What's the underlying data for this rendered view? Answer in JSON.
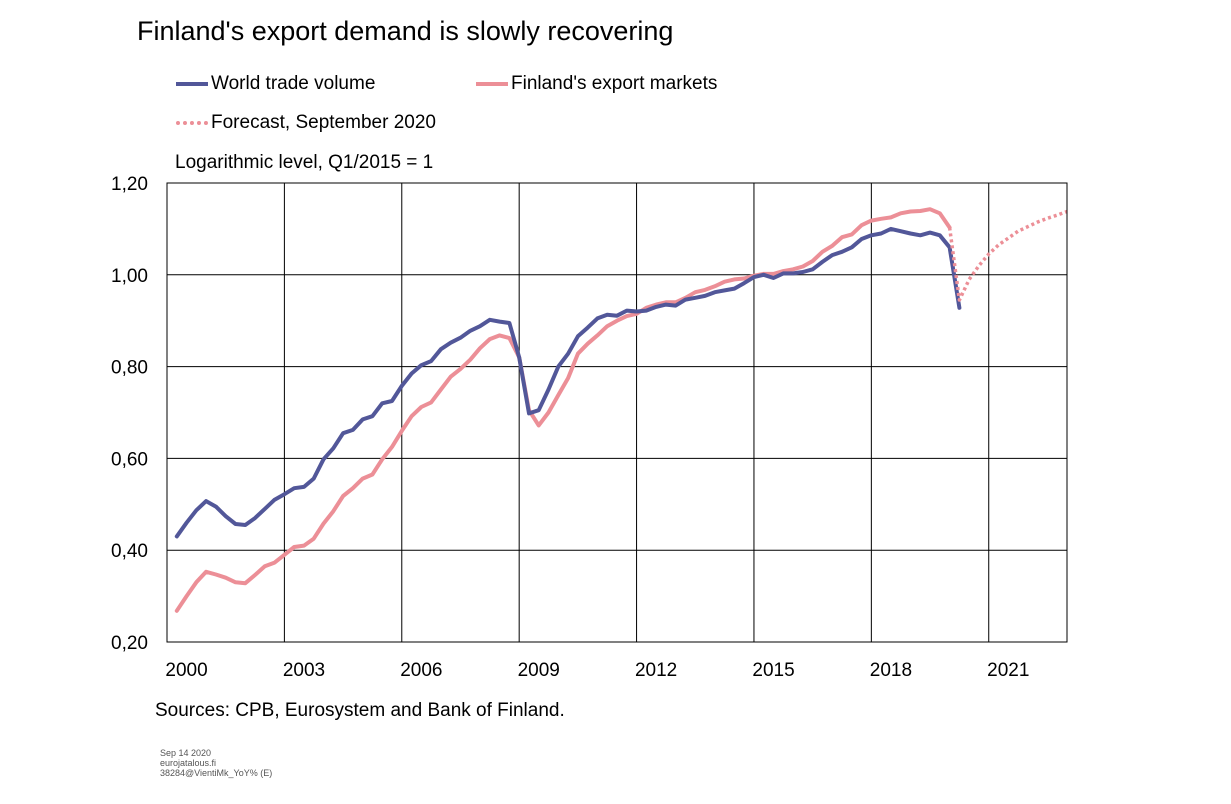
{
  "chart_data": {
    "type": "line",
    "title": "Finland's export demand is slowly recovering",
    "subtitle": "Logarithmic level, Q1/2015 = 1",
    "source": "Sources: CPB, Eurosystem and Bank of Finland.",
    "ylim": [
      0.2,
      1.2
    ],
    "y_ticks": [
      0.2,
      0.4,
      0.6,
      0.8,
      1.0,
      1.2
    ],
    "y_tick_labels": [
      "0,20",
      "0,40",
      "0,60",
      "0,80",
      "1,00",
      "1,20"
    ],
    "xlim": [
      2000.0,
      2023.0
    ],
    "x_gridlines": [
      2003.0,
      2006.0,
      2009.0,
      2012.0,
      2015.0,
      2018.0,
      2021.0
    ],
    "x_tick_labels": [
      {
        "year": 2000.5,
        "label": "2000"
      },
      {
        "year": 2003.5,
        "label": "2003"
      },
      {
        "year": 2006.5,
        "label": "2006"
      },
      {
        "year": 2009.5,
        "label": "2009"
      },
      {
        "year": 2012.5,
        "label": "2012"
      },
      {
        "year": 2015.5,
        "label": "2015"
      },
      {
        "year": 2018.5,
        "label": "2018"
      },
      {
        "year": 2021.5,
        "label": "2021"
      }
    ],
    "grid": true,
    "series": [
      {
        "name": "World trade volume",
        "color": "#525799",
        "style": "solid",
        "x": [
          2000.25,
          2000.5,
          2000.75,
          2001.0,
          2001.25,
          2001.5,
          2001.75,
          2002.0,
          2002.25,
          2002.5,
          2002.75,
          2003.0,
          2003.25,
          2003.5,
          2003.75,
          2004.0,
          2004.25,
          2004.5,
          2004.75,
          2005.0,
          2005.25,
          2005.5,
          2005.75,
          2006.0,
          2006.25,
          2006.5,
          2006.75,
          2007.0,
          2007.25,
          2007.5,
          2007.75,
          2008.0,
          2008.25,
          2008.5,
          2008.75,
          2009.0,
          2009.25,
          2009.5,
          2009.75,
          2010.0,
          2010.25,
          2010.5,
          2010.75,
          2011.0,
          2011.25,
          2011.5,
          2011.75,
          2012.0,
          2012.25,
          2012.5,
          2012.75,
          2013.0,
          2013.25,
          2013.5,
          2013.75,
          2014.0,
          2014.25,
          2014.5,
          2014.75,
          2015.0,
          2015.25,
          2015.5,
          2015.75,
          2016.0,
          2016.25,
          2016.5,
          2016.75,
          2017.0,
          2017.25,
          2017.5,
          2017.75,
          2018.0,
          2018.25,
          2018.5,
          2018.75,
          2019.0,
          2019.25,
          2019.5,
          2019.75,
          2020.0,
          2020.25
        ],
        "values": [
          0.43,
          0.46,
          0.487,
          0.507,
          0.495,
          0.474,
          0.457,
          0.455,
          0.47,
          0.49,
          0.51,
          0.522,
          0.535,
          0.538,
          0.556,
          0.598,
          0.622,
          0.655,
          0.662,
          0.685,
          0.692,
          0.72,
          0.725,
          0.758,
          0.785,
          0.803,
          0.812,
          0.838,
          0.852,
          0.863,
          0.878,
          0.888,
          0.902,
          0.898,
          0.895,
          0.82,
          0.698,
          0.705,
          0.75,
          0.8,
          0.828,
          0.866,
          0.885,
          0.905,
          0.913,
          0.911,
          0.922,
          0.92,
          0.922,
          0.93,
          0.935,
          0.933,
          0.946,
          0.95,
          0.954,
          0.962,
          0.966,
          0.97,
          0.982,
          0.995,
          1.0,
          0.993,
          1.003,
          1.003,
          1.006,
          1.012,
          1.028,
          1.043,
          1.05,
          1.06,
          1.078,
          1.086,
          1.09,
          1.1,
          1.095,
          1.09,
          1.086,
          1.092,
          1.086,
          1.06,
          0.928
        ]
      },
      {
        "name": "Finland's export markets",
        "color": "#ec8f97",
        "style": "solid",
        "x": [
          2000.25,
          2000.5,
          2000.75,
          2001.0,
          2001.25,
          2001.5,
          2001.75,
          2002.0,
          2002.25,
          2002.5,
          2002.75,
          2003.0,
          2003.25,
          2003.5,
          2003.75,
          2004.0,
          2004.25,
          2004.5,
          2004.75,
          2005.0,
          2005.25,
          2005.5,
          2005.75,
          2006.0,
          2006.25,
          2006.5,
          2006.75,
          2007.0,
          2007.25,
          2007.5,
          2007.75,
          2008.0,
          2008.25,
          2008.5,
          2008.75,
          2009.0,
          2009.25,
          2009.5,
          2009.75,
          2010.0,
          2010.25,
          2010.5,
          2010.75,
          2011.0,
          2011.25,
          2011.5,
          2011.75,
          2012.0,
          2012.25,
          2012.5,
          2012.75,
          2013.0,
          2013.25,
          2013.5,
          2013.75,
          2014.0,
          2014.25,
          2014.5,
          2014.75,
          2015.0,
          2015.25,
          2015.5,
          2015.75,
          2016.0,
          2016.25,
          2016.5,
          2016.75,
          2017.0,
          2017.25,
          2017.5,
          2017.75,
          2018.0,
          2018.25,
          2018.5,
          2018.75,
          2019.0,
          2019.25,
          2019.5,
          2019.75,
          2020.0
        ],
        "values": [
          0.268,
          0.3,
          0.33,
          0.353,
          0.347,
          0.34,
          0.33,
          0.328,
          0.346,
          0.365,
          0.373,
          0.39,
          0.407,
          0.41,
          0.425,
          0.458,
          0.485,
          0.518,
          0.535,
          0.556,
          0.565,
          0.598,
          0.625,
          0.66,
          0.692,
          0.712,
          0.722,
          0.75,
          0.778,
          0.795,
          0.815,
          0.84,
          0.86,
          0.868,
          0.862,
          0.82,
          0.705,
          0.672,
          0.7,
          0.738,
          0.775,
          0.828,
          0.85,
          0.868,
          0.888,
          0.9,
          0.91,
          0.915,
          0.928,
          0.935,
          0.94,
          0.94,
          0.95,
          0.962,
          0.967,
          0.975,
          0.985,
          0.99,
          0.992,
          0.998,
          1.002,
          1.002,
          1.008,
          1.012,
          1.018,
          1.03,
          1.05,
          1.063,
          1.082,
          1.088,
          1.108,
          1.118,
          1.122,
          1.125,
          1.134,
          1.138,
          1.139,
          1.143,
          1.134,
          1.103
        ]
      },
      {
        "name": "Forecast, September 2020",
        "color": "#ec8f97",
        "style": "dotted",
        "x": [
          2020.0,
          2020.25,
          2020.5,
          2020.75,
          2021.0,
          2021.25,
          2021.5,
          2021.75,
          2022.0,
          2022.25,
          2022.5,
          2022.75,
          2023.0
        ],
        "values": [
          1.103,
          0.945,
          0.99,
          1.02,
          1.045,
          1.065,
          1.08,
          1.095,
          1.105,
          1.115,
          1.123,
          1.13,
          1.138
        ]
      }
    ]
  },
  "footer": {
    "line1": "Sep 14 2020",
    "line2": "eurojatalous.fi",
    "line3": "38284@VientiMk_YoY% (E)"
  }
}
